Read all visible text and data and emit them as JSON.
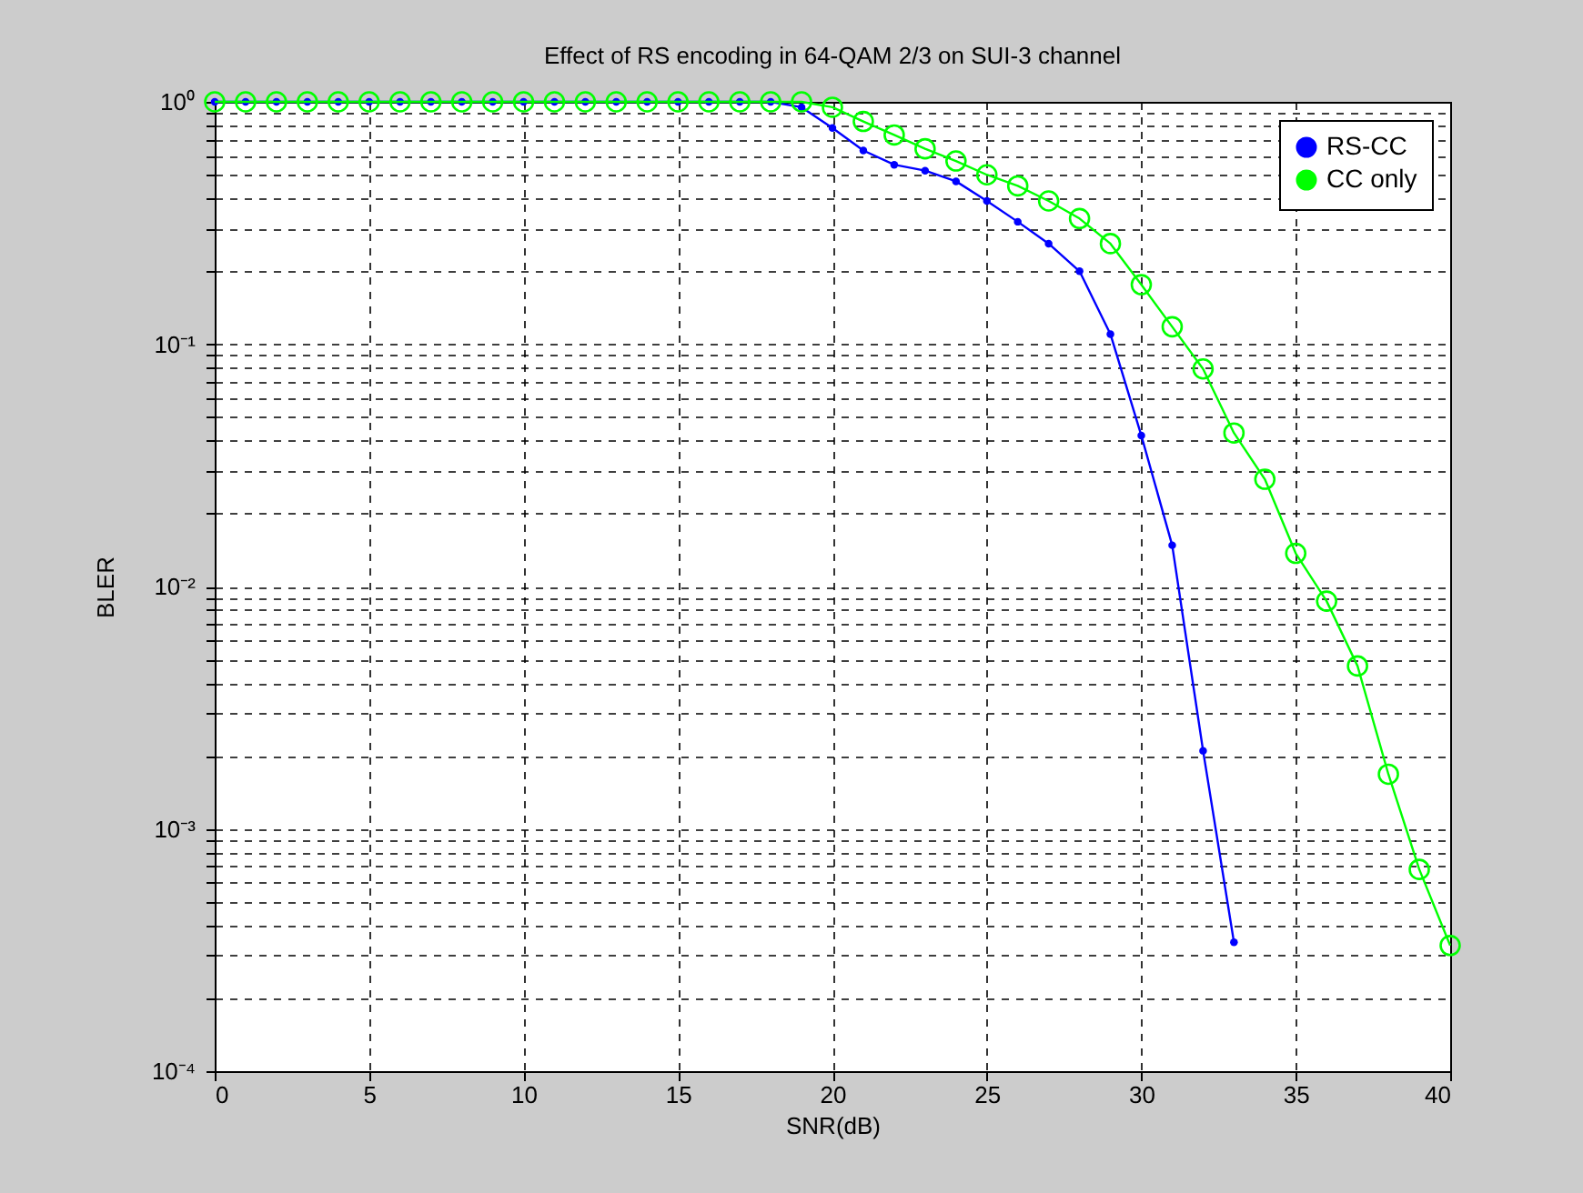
{
  "chart_data": {
    "type": "line",
    "title": "Effect of RS encoding in 64-QAM 2/3 on SUI-3 channel",
    "xlabel": "SNR(dB)",
    "ylabel": "BLER",
    "x": [
      0,
      1,
      2,
      3,
      4,
      5,
      6,
      7,
      8,
      9,
      10,
      11,
      12,
      13,
      14,
      15,
      16,
      17,
      18,
      19,
      20,
      21,
      22,
      23,
      24,
      25,
      26,
      27,
      28,
      29,
      30,
      31,
      32,
      33,
      34,
      35,
      36,
      37,
      38,
      39,
      40
    ],
    "series": [
      {
        "name": "RS-CC",
        "color": "#0000ff",
        "marker": "circle",
        "x": [
          0,
          1,
          2,
          3,
          4,
          5,
          6,
          7,
          8,
          9,
          10,
          11,
          12,
          13,
          14,
          15,
          16,
          17,
          18,
          19,
          20,
          21,
          22,
          23,
          24,
          25,
          26,
          27,
          28,
          29,
          30,
          31,
          32,
          33
        ],
        "values": [
          1,
          1,
          1,
          1,
          1,
          1,
          1,
          1,
          1,
          1,
          1,
          1,
          1,
          1,
          1,
          1,
          1,
          1,
          1,
          0.95,
          0.78,
          0.63,
          0.55,
          0.52,
          0.47,
          0.39,
          0.32,
          0.26,
          0.2,
          0.11,
          0.042,
          0.0148,
          0.0021,
          0.00034
        ]
      },
      {
        "name": "CC only",
        "color": "#00ff00",
        "marker": "circle",
        "values": [
          1,
          1,
          1,
          1,
          1,
          1,
          1,
          1,
          1,
          1,
          1,
          1,
          1,
          1,
          1,
          1,
          1,
          1,
          1,
          1,
          0.95,
          0.83,
          0.73,
          0.64,
          0.57,
          0.5,
          0.45,
          0.39,
          0.33,
          0.26,
          0.176,
          0.118,
          0.079,
          0.043,
          0.0277,
          0.0137,
          0.0087,
          0.0047,
          0.00168,
          0.00068,
          0.00033
        ]
      }
    ],
    "log": "y",
    "xlim": [
      0,
      40
    ],
    "xticks": [
      0,
      5,
      10,
      15,
      20,
      25,
      30,
      35,
      40
    ],
    "ylim": [
      0.0001,
      1
    ],
    "yticks": [
      {
        "value": 0.0001,
        "label": "10⁻⁴"
      },
      {
        "value": 0.0002,
        "label": null
      },
      {
        "value": 0.0003,
        "label": null
      },
      {
        "value": 0.0004,
        "label": null
      },
      {
        "value": 0.0005,
        "label": null
      },
      {
        "value": 0.0006,
        "label": null
      },
      {
        "value": 0.0007,
        "label": null
      },
      {
        "value": 0.0008,
        "label": null
      },
      {
        "value": 0.0009,
        "label": null
      },
      {
        "value": 0.001,
        "label": "10⁻³"
      },
      {
        "value": 0.002,
        "label": null
      },
      {
        "value": 0.003,
        "label": null
      },
      {
        "value": 0.004,
        "label": null
      },
      {
        "value": 0.005,
        "label": null
      },
      {
        "value": 0.006,
        "label": null
      },
      {
        "value": 0.007,
        "label": null
      },
      {
        "value": 0.008,
        "label": null
      },
      {
        "value": 0.009,
        "label": null
      },
      {
        "value": 0.01,
        "label": "10⁻²"
      },
      {
        "value": 0.02,
        "label": null
      },
      {
        "value": 0.03,
        "label": null
      },
      {
        "value": 0.04,
        "label": null
      },
      {
        "value": 0.05,
        "label": null
      },
      {
        "value": 0.06,
        "label": null
      },
      {
        "value": 0.07,
        "label": null
      },
      {
        "value": 0.08,
        "label": null
      },
      {
        "value": 0.09,
        "label": null
      },
      {
        "value": 0.1,
        "label": "10⁻¹"
      },
      {
        "value": 0.2,
        "label": null
      },
      {
        "value": 0.3,
        "label": null
      },
      {
        "value": 0.4,
        "label": null
      },
      {
        "value": 0.5,
        "label": null
      },
      {
        "value": 0.6,
        "label": null
      },
      {
        "value": 0.7,
        "label": null
      },
      {
        "value": 0.8,
        "label": null
      },
      {
        "value": 0.9,
        "label": null
      },
      {
        "value": 1,
        "label": "10⁰"
      }
    ],
    "grid": true,
    "legend": "top right",
    "line_style": "solid"
  }
}
